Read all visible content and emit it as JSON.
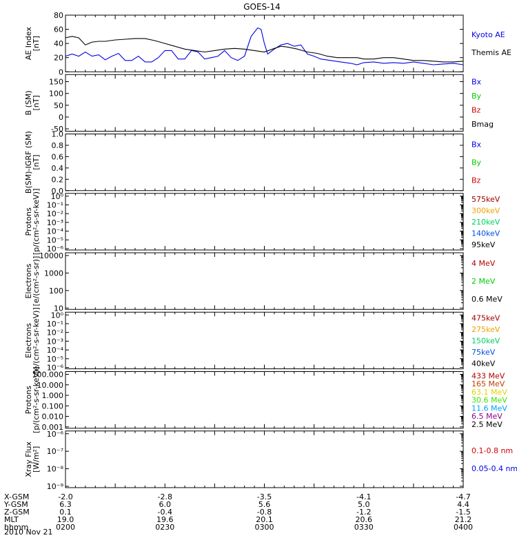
{
  "title": "GOES-14",
  "date": "2010 Nov 21",
  "colors": {
    "blue": "#0000e6",
    "green": "#00cc00",
    "red": "#d40000",
    "black": "#000000",
    "dark_red": "#a00000",
    "orange": "#f0a000",
    "green2": "#00d060",
    "blue2": "#0050e0",
    "maroon": "#b00000",
    "brown": "#c04000",
    "yellow": "#e6d200",
    "lime": "#40e000",
    "cyan": "#00a0ff",
    "purple": "#2020c0",
    "violet": "#900090"
  },
  "ephemeris": {
    "labels": [
      "X-GSM",
      "Y-GSM",
      "Z-GSM",
      "MLT",
      "hhmm"
    ],
    "rows": [
      [
        "-2.0",
        "-2.8",
        "-3.5",
        "-4.1",
        "-4.7"
      ],
      [
        "6.3",
        "6.0",
        "5.6",
        "5.0",
        "4.4"
      ],
      [
        "0.1",
        "-0.4",
        "-0.8",
        "-1.2",
        "-1.5"
      ],
      [
        "19.0",
        "19.6",
        "20.1",
        "20.6",
        "21.2"
      ],
      [
        "0200",
        "0230",
        "0300",
        "0330",
        "0400"
      ]
    ]
  },
  "chart_data": [
    {
      "type": "line",
      "ylabel": "AE Index [nT]",
      "ylim": [
        0,
        80
      ],
      "yticks": [
        "0",
        "20",
        "40",
        "60",
        "80"
      ],
      "legend": [
        {
          "name": "Kyoto AE",
          "color": "blue"
        },
        {
          "name": "Themis AE",
          "color": "black"
        }
      ],
      "series": [
        {
          "name": "Kyoto AE",
          "color": "blue",
          "points": [
            [
              0,
              22
            ],
            [
              4,
              25
            ],
            [
              8,
              22
            ],
            [
              12,
              28
            ],
            [
              16,
              22
            ],
            [
              20,
              24
            ],
            [
              24,
              17
            ],
            [
              28,
              22
            ],
            [
              32,
              26
            ],
            [
              36,
              16
            ],
            [
              40,
              16
            ],
            [
              44,
              22
            ],
            [
              48,
              14
            ],
            [
              52,
              14
            ],
            [
              56,
              20
            ],
            [
              60,
              30
            ],
            [
              64,
              30
            ],
            [
              68,
              18
            ],
            [
              72,
              18
            ],
            [
              76,
              30
            ],
            [
              80,
              28
            ],
            [
              84,
              18
            ],
            [
              88,
              20
            ],
            [
              92,
              22
            ],
            [
              96,
              30
            ],
            [
              100,
              20
            ],
            [
              104,
              16
            ],
            [
              108,
              22
            ],
            [
              112,
              50
            ],
            [
              116,
              62
            ],
            [
              118,
              60
            ],
            [
              120,
              40
            ],
            [
              122,
              25
            ],
            [
              126,
              32
            ],
            [
              130,
              38
            ],
            [
              134,
              40
            ],
            [
              138,
              36
            ],
            [
              142,
              38
            ],
            [
              146,
              25
            ],
            [
              150,
              22
            ],
            [
              154,
              18
            ],
            [
              160,
              16
            ],
            [
              166,
              14
            ],
            [
              172,
              12
            ],
            [
              176,
              10
            ],
            [
              180,
              13
            ],
            [
              186,
              14
            ],
            [
              192,
              12
            ],
            [
              198,
              13
            ],
            [
              204,
              12
            ],
            [
              210,
              14
            ],
            [
              216,
              12
            ],
            [
              222,
              10
            ],
            [
              228,
              11
            ],
            [
              234,
              12
            ],
            [
              240,
              10
            ]
          ]
        },
        {
          "name": "Themis AE",
          "color": "black",
          "points": [
            [
              0,
              48
            ],
            [
              4,
              50
            ],
            [
              8,
              48
            ],
            [
              12,
              38
            ],
            [
              16,
              42
            ],
            [
              20,
              43
            ],
            [
              24,
              43
            ],
            [
              30,
              45
            ],
            [
              36,
              46
            ],
            [
              42,
              47
            ],
            [
              48,
              47
            ],
            [
              54,
              44
            ],
            [
              60,
              40
            ],
            [
              66,
              36
            ],
            [
              72,
              32
            ],
            [
              78,
              30
            ],
            [
              84,
              28
            ],
            [
              90,
              30
            ],
            [
              96,
              32
            ],
            [
              102,
              33
            ],
            [
              108,
              32
            ],
            [
              114,
              30
            ],
            [
              120,
              28
            ],
            [
              126,
              33
            ],
            [
              130,
              36
            ],
            [
              134,
              35
            ],
            [
              140,
              32
            ],
            [
              146,
              28
            ],
            [
              152,
              26
            ],
            [
              158,
              22
            ],
            [
              164,
              20
            ],
            [
              170,
              20
            ],
            [
              176,
              20
            ],
            [
              180,
              18
            ],
            [
              186,
              18
            ],
            [
              192,
              20
            ],
            [
              198,
              20
            ],
            [
              204,
              18
            ],
            [
              210,
              16
            ],
            [
              216,
              16
            ],
            [
              222,
              15
            ],
            [
              228,
              14
            ],
            [
              234,
              14
            ],
            [
              240,
              15
            ]
          ]
        }
      ]
    },
    {
      "type": "line",
      "ylabel": "B (SM) [nT]",
      "ylim": [
        -60,
        180
      ],
      "yticks": [
        "-50",
        "0",
        "50",
        "100",
        "150"
      ],
      "legend": [
        {
          "name": "Bx",
          "color": "blue"
        },
        {
          "name": "By",
          "color": "green"
        },
        {
          "name": "Bz",
          "color": "red"
        },
        {
          "name": "Bmag",
          "color": "black"
        }
      ],
      "series": []
    },
    {
      "type": "line",
      "ylabel": "B(SM)-IGRF (SM) [nT]",
      "ylim": [
        0,
        1
      ],
      "yticks": [
        "0.0",
        "0.2",
        "0.4",
        "0.6",
        "0.8",
        "1.0"
      ],
      "legend": [
        {
          "name": "Bx",
          "color": "blue"
        },
        {
          "name": "By",
          "color": "green"
        },
        {
          "name": "Bz",
          "color": "red"
        }
      ],
      "series": []
    },
    {
      "type": "line",
      "ylabel": "Protons [p/(cm²-s-sr-keV)]",
      "yscale": "log",
      "yticks": [
        "10⁻⁶",
        "10⁻⁵",
        "10⁻⁴",
        "10⁻³",
        "10⁻²",
        "10⁻¹",
        "10⁰"
      ],
      "legend": [
        {
          "name": "575keV",
          "color": "dark_red"
        },
        {
          "name": "300keV",
          "color": "orange"
        },
        {
          "name": "210keV",
          "color": "green2"
        },
        {
          "name": "140keV",
          "color": "blue2"
        },
        {
          "name": "95keV",
          "color": "black"
        }
      ],
      "series": []
    },
    {
      "type": "line",
      "ylabel": "Electrons [e/(cm²-s-sr)]",
      "yscale": "log",
      "yticks": [
        "10",
        "100",
        "1000",
        "10000"
      ],
      "legend": [
        {
          "name": "4 MeV",
          "color": "maroon"
        },
        {
          "name": "2 MeV",
          "color": "green"
        },
        {
          "name": "0.6 MeV",
          "color": "black"
        }
      ],
      "series": []
    },
    {
      "type": "line",
      "ylabel": "Electrons [e/(cm²-s-sr-keV)]",
      "yscale": "log",
      "yticks": [
        "10⁻⁶",
        "10⁻⁵",
        "10⁻⁴",
        "10⁻³",
        "10⁻²",
        "10⁻¹",
        "10⁰"
      ],
      "legend": [
        {
          "name": "475keV",
          "color": "dark_red"
        },
        {
          "name": "275keV",
          "color": "orange"
        },
        {
          "name": "150keV",
          "color": "green2"
        },
        {
          "name": "75keV",
          "color": "blue2"
        },
        {
          "name": "40keV",
          "color": "black"
        }
      ],
      "series": []
    },
    {
      "type": "line",
      "ylabel": "Protons [p/(cm²-s-sr-keV)]",
      "yscale": "log",
      "yticks": [
        "0.001",
        "0.010",
        "0.100",
        "1.000",
        "10.000",
        "100.000"
      ],
      "legend": [
        {
          "name": "433 MeV",
          "color": "maroon"
        },
        {
          "name": "165 MeV",
          "color": "brown"
        },
        {
          "name": "63.1 MeV",
          "color": "yellow"
        },
        {
          "name": "30.6 MeV",
          "color": "lime"
        },
        {
          "name": "11.6 MeV",
          "color": "cyan"
        },
        {
          "name": "6.5 MeV",
          "color": "violet"
        },
        {
          "name": "2.5 MeV",
          "color": "black"
        }
      ],
      "series": []
    },
    {
      "type": "line",
      "ylabel": "Xray Flux [W/m²]",
      "yscale": "log",
      "yticks": [
        "10⁻⁹",
        "10⁻⁸",
        "10⁻⁷",
        "10⁻⁶"
      ],
      "legend": [
        {
          "name": "0.1-0.8 nm",
          "color": "red"
        },
        {
          "name": "0.05-0.4 nm",
          "color": "blue"
        }
      ],
      "series": []
    }
  ]
}
